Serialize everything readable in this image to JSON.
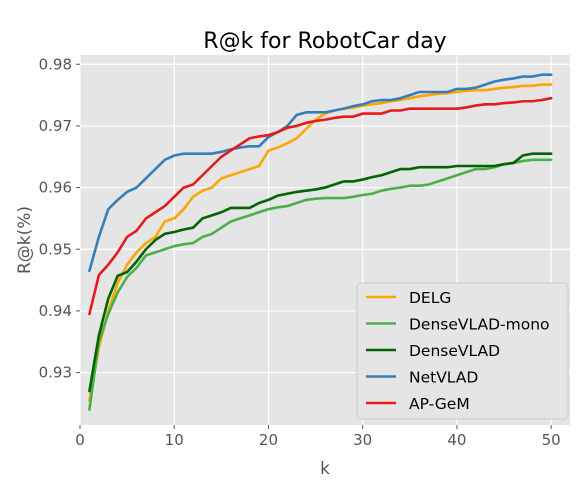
{
  "chart_data": {
    "type": "line",
    "title": "R@k for RobotCar day",
    "xlabel": "k",
    "ylabel": "R@k(%)",
    "xlim": [
      0,
      52
    ],
    "ylim": [
      0.9215,
      0.9815
    ],
    "x_ticks": [
      0,
      10,
      20,
      30,
      40,
      50
    ],
    "y_ticks": [
      0.93,
      0.94,
      0.95,
      0.96,
      0.97,
      0.98
    ],
    "x_tick_labels": [
      "0",
      "10",
      "20",
      "30",
      "40",
      "50"
    ],
    "y_tick_labels": [
      "0.93",
      "0.94",
      "0.95",
      "0.96",
      "0.97",
      "0.98"
    ],
    "grid": true,
    "legend_position": "lower-right",
    "x": [
      1,
      2,
      3,
      4,
      5,
      6,
      7,
      8,
      9,
      10,
      11,
      12,
      13,
      14,
      15,
      16,
      17,
      18,
      19,
      20,
      21,
      22,
      23,
      24,
      25,
      26,
      27,
      28,
      29,
      30,
      31,
      32,
      33,
      34,
      35,
      36,
      37,
      38,
      39,
      40,
      41,
      42,
      43,
      44,
      45,
      46,
      47,
      48,
      49,
      50
    ],
    "series": [
      {
        "name": "DELG",
        "color": "#FFA500",
        "values": [
          0.9255,
          0.934,
          0.94,
          0.9445,
          0.9475,
          0.9495,
          0.951,
          0.952,
          0.9545,
          0.955,
          0.9565,
          0.9585,
          0.9595,
          0.96,
          0.9615,
          0.962,
          0.9625,
          0.963,
          0.9635,
          0.966,
          0.9665,
          0.9672,
          0.968,
          0.9695,
          0.971,
          0.972,
          0.9725,
          0.9728,
          0.973,
          0.9733,
          0.9735,
          0.9737,
          0.974,
          0.9742,
          0.9745,
          0.9748,
          0.975,
          0.9752,
          0.9753,
          0.9755,
          0.9757,
          0.9758,
          0.9758,
          0.976,
          0.9762,
          0.9763,
          0.9765,
          0.9765,
          0.9767,
          0.9767
        ]
      },
      {
        "name": "DenseVLAD-mono",
        "color": "#4DAF4A",
        "values": [
          0.924,
          0.935,
          0.9395,
          0.943,
          0.9455,
          0.947,
          0.949,
          0.9495,
          0.95,
          0.9505,
          0.9508,
          0.951,
          0.952,
          0.9525,
          0.9535,
          0.9545,
          0.955,
          0.9555,
          0.956,
          0.9565,
          0.9568,
          0.957,
          0.9575,
          0.958,
          0.9582,
          0.9583,
          0.9583,
          0.9583,
          0.9585,
          0.9588,
          0.959,
          0.9595,
          0.9598,
          0.96,
          0.9603,
          0.9603,
          0.9605,
          0.961,
          0.9615,
          0.962,
          0.9625,
          0.963,
          0.963,
          0.9633,
          0.9638,
          0.964,
          0.9643,
          0.9645,
          0.9645,
          0.9645
        ]
      },
      {
        "name": "DenseVLAD",
        "color": "#006400",
        "values": [
          0.927,
          0.936,
          0.942,
          0.9457,
          0.9463,
          0.948,
          0.95,
          0.9515,
          0.9525,
          0.9528,
          0.9532,
          0.9535,
          0.955,
          0.9555,
          0.956,
          0.9567,
          0.9567,
          0.9567,
          0.9575,
          0.958,
          0.9587,
          0.959,
          0.9593,
          0.9595,
          0.9597,
          0.96,
          0.9605,
          0.961,
          0.961,
          0.9613,
          0.9617,
          0.962,
          0.9625,
          0.963,
          0.963,
          0.9633,
          0.9633,
          0.9633,
          0.9633,
          0.9635,
          0.9635,
          0.9635,
          0.9635,
          0.9635,
          0.9638,
          0.964,
          0.9652,
          0.9655,
          0.9655,
          0.9655
        ]
      },
      {
        "name": "NetVLAD",
        "color": "#377EB8",
        "values": [
          0.9465,
          0.952,
          0.9565,
          0.958,
          0.9593,
          0.96,
          0.9615,
          0.963,
          0.9645,
          0.9652,
          0.9655,
          0.9655,
          0.9655,
          0.9655,
          0.9658,
          0.9662,
          0.9665,
          0.9667,
          0.9667,
          0.9682,
          0.969,
          0.97,
          0.9718,
          0.9722,
          0.9722,
          0.9722,
          0.9725,
          0.9728,
          0.9732,
          0.9735,
          0.974,
          0.9742,
          0.9742,
          0.9745,
          0.975,
          0.9755,
          0.9755,
          0.9755,
          0.9755,
          0.976,
          0.976,
          0.9762,
          0.9767,
          0.9772,
          0.9775,
          0.9777,
          0.978,
          0.978,
          0.9783,
          0.9783
        ]
      },
      {
        "name": "AP-GeM",
        "color": "#E41A1C",
        "values": [
          0.9395,
          0.9458,
          0.9475,
          0.9495,
          0.952,
          0.953,
          0.955,
          0.956,
          0.957,
          0.9585,
          0.96,
          0.9605,
          0.962,
          0.9635,
          0.965,
          0.966,
          0.967,
          0.968,
          0.9683,
          0.9685,
          0.969,
          0.9697,
          0.97,
          0.9705,
          0.9708,
          0.971,
          0.9713,
          0.9715,
          0.9715,
          0.972,
          0.972,
          0.972,
          0.9725,
          0.9725,
          0.9728,
          0.9728,
          0.9728,
          0.9728,
          0.9728,
          0.9728,
          0.973,
          0.9733,
          0.9735,
          0.9735,
          0.9737,
          0.9738,
          0.974,
          0.974,
          0.9742,
          0.9745
        ]
      }
    ]
  },
  "colors": {
    "plot_background": "#E5E5E5",
    "grid": "#FFFFFF",
    "legend_background": "#E5E5E5",
    "legend_border": "#CCCCCC"
  }
}
